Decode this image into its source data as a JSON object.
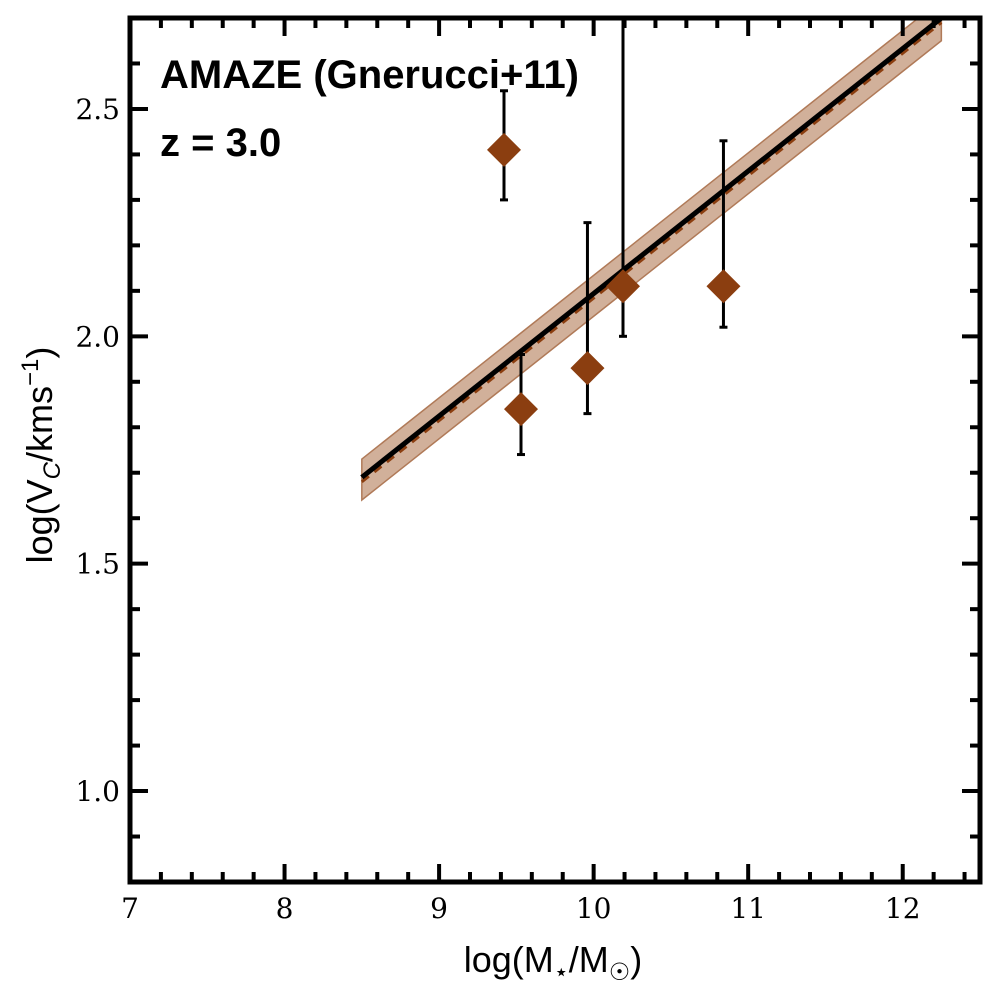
{
  "chart_data": {
    "type": "scatter",
    "title": "",
    "annotations": [
      "AMAZE (Gnerucci+11)",
      "z = 3.0"
    ],
    "xlabel": "log(M⋆/M☉)",
    "ylabel": "log(V_C/kms⁻¹)",
    "xlabel_parts": {
      "base": "log(M",
      "sub1": "⋆",
      "mid": "/M",
      "sub2": "☉",
      "end": ")"
    },
    "ylabel_parts": {
      "base": "log(V",
      "sub": "C",
      "mid": "/kms",
      "sup": "−1",
      "end": ")"
    },
    "xlim": [
      7,
      12.5
    ],
    "ylim": [
      0.8,
      2.7
    ],
    "xticks": [
      7,
      8,
      9,
      10,
      11,
      12
    ],
    "xtick_labels": [
      "7",
      "8",
      "9",
      "10",
      "11",
      "12"
    ],
    "yticks": [
      1.0,
      1.5,
      2.0,
      2.5
    ],
    "ytick_labels": [
      "1.0",
      "1.5",
      "2.0",
      "2.5"
    ],
    "grid": false,
    "points": [
      {
        "x": 9.42,
        "y": 2.41,
        "yerr_low": 2.3,
        "yerr_high": 2.54
      },
      {
        "x": 9.53,
        "y": 1.84,
        "yerr_low": 1.74,
        "yerr_high": 1.96
      },
      {
        "x": 9.96,
        "y": 1.93,
        "yerr_low": 1.83,
        "yerr_high": 2.25
      },
      {
        "x": 10.19,
        "y": 2.11,
        "yerr_low": 2.0,
        "yerr_high": 2.7
      },
      {
        "x": 10.84,
        "y": 2.11,
        "yerr_low": 2.02,
        "yerr_high": 2.43
      }
    ],
    "fit_line": {
      "x": [
        8.5,
        12.25
      ],
      "y": [
        1.69,
        2.7
      ]
    },
    "fit_dashed": {
      "x": [
        8.5,
        12.25
      ],
      "y": [
        1.68,
        2.69
      ]
    },
    "fit_band": {
      "x": [
        8.5,
        12.25
      ],
      "y_low": [
        1.64,
        2.65
      ],
      "y_high": [
        1.73,
        2.74
      ]
    },
    "colors": {
      "points": "#8b3e10",
      "band_fill": "#c9a288",
      "band_edge": "#b07a58",
      "line": "#000000",
      "dashed": "#8b3e10"
    }
  }
}
